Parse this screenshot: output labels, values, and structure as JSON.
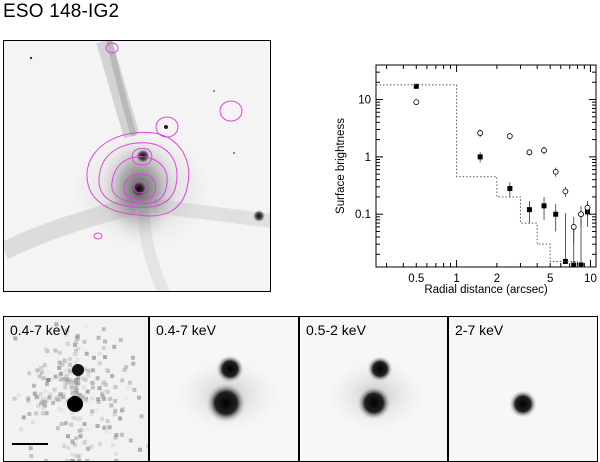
{
  "title": "ESO 148-IG2",
  "chart_data": {
    "type": "scatter",
    "xlabel": "Radial distance (arcsec)",
    "ylabel": "Surface brightness",
    "xscale": "log",
    "yscale": "log",
    "xlim": [
      0.25,
      11
    ],
    "ylim": [
      0.012,
      40
    ],
    "xticks": [
      0.5,
      1,
      2,
      5,
      10
    ],
    "xtick_labels": [
      "0.5",
      "1",
      "2",
      "5",
      "10"
    ],
    "yticks": [
      0.1,
      1,
      10
    ],
    "ytick_labels": [
      "0.1",
      "1",
      "10"
    ],
    "series": [
      {
        "style": "filled-square",
        "x": [
          0.5,
          1.5,
          2.5,
          3.5,
          4.5,
          5.5,
          6.5,
          7.5,
          8.5,
          9.5
        ],
        "y": [
          17,
          1.0,
          0.28,
          0.12,
          0.14,
          0.1,
          0.015,
          0.013,
          0.013,
          0.11
        ],
        "err_lo": [
          0,
          0.2,
          0.08,
          0.05,
          0.06,
          0.05,
          0.0,
          0.0,
          0.0,
          0.05
        ],
        "err_hi": [
          0,
          0.2,
          0.08,
          0.05,
          0.06,
          0.05,
          0.09,
          0.05,
          0.08,
          0.05
        ]
      },
      {
        "style": "open-circle",
        "x": [
          0.5,
          1.5,
          2.5,
          3.5,
          4.5,
          5.5,
          6.5,
          7.5,
          8.5,
          9.5
        ],
        "y": [
          9.0,
          2.6,
          2.3,
          1.2,
          1.3,
          0.55,
          0.25,
          0.06,
          0.1,
          0.13
        ],
        "err_lo": [
          0,
          0.4,
          0.3,
          0.15,
          0.2,
          0.1,
          0.05,
          0.03,
          0.04,
          0.04
        ],
        "err_hi": [
          0,
          0.4,
          0.3,
          0.15,
          0.2,
          0.1,
          0.05,
          0.03,
          0.04,
          0.04
        ]
      },
      {
        "style": "dotted-step",
        "x": [
          0.25,
          1.0,
          1.0,
          2.0,
          2.0,
          3.0,
          3.0,
          4.0,
          4.0,
          5.0,
          5.0,
          8.0,
          8.0,
          10.0
        ],
        "y": [
          18,
          18,
          0.45,
          0.45,
          0.2,
          0.2,
          0.07,
          0.07,
          0.03,
          0.03,
          0.015,
          0.015,
          0.012,
          0.012
        ]
      }
    ]
  },
  "strips": [
    {
      "label": "0.4-7 keV"
    },
    {
      "label": "0.4-7 keV"
    },
    {
      "label": "0.5-2 keV"
    },
    {
      "label": "2-7 keV"
    }
  ]
}
